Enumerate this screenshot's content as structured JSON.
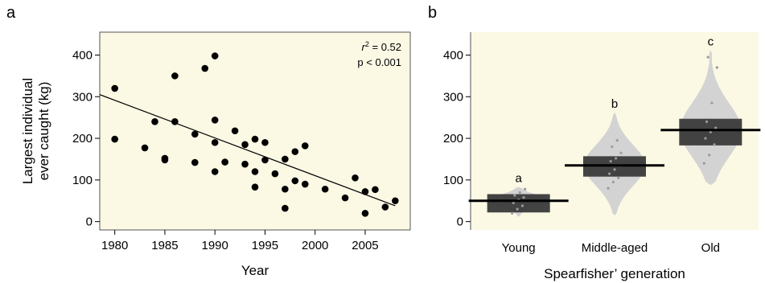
{
  "chart_data": [
    {
      "panel_label": "a",
      "type": "scatter",
      "xlabel": "Year",
      "ylabel_lines": [
        "Largest individual",
        "ever caught (kg)"
      ],
      "xlim": [
        1978.5,
        2009.5
      ],
      "ylim": [
        -20,
        455
      ],
      "xticks": [
        1980,
        1985,
        1990,
        1995,
        2000,
        2005
      ],
      "yticks": [
        0,
        100,
        200,
        300,
        400
      ],
      "background": "#fbf8e4",
      "point_color": "#000000",
      "annotation": {
        "r_symbol": "r",
        "r_exp": "2",
        "r_value": " = 0.52",
        "p_text": "p < 0.001"
      },
      "trendline": {
        "x": [
          1978.5,
          2008
        ],
        "y": [
          305,
          38
        ]
      },
      "points": [
        {
          "x": 1980,
          "y": 320
        },
        {
          "x": 1980,
          "y": 198
        },
        {
          "x": 1983,
          "y": 177
        },
        {
          "x": 1984,
          "y": 240
        },
        {
          "x": 1985,
          "y": 152
        },
        {
          "x": 1985,
          "y": 148
        },
        {
          "x": 1986,
          "y": 350
        },
        {
          "x": 1986,
          "y": 240
        },
        {
          "x": 1988,
          "y": 210
        },
        {
          "x": 1988,
          "y": 142
        },
        {
          "x": 1989,
          "y": 368
        },
        {
          "x": 1990,
          "y": 398
        },
        {
          "x": 1990,
          "y": 244
        },
        {
          "x": 1990,
          "y": 190
        },
        {
          "x": 1990,
          "y": 120
        },
        {
          "x": 1991,
          "y": 143
        },
        {
          "x": 1992,
          "y": 218
        },
        {
          "x": 1993,
          "y": 185
        },
        {
          "x": 1993,
          "y": 138
        },
        {
          "x": 1994,
          "y": 198
        },
        {
          "x": 1994,
          "y": 120
        },
        {
          "x": 1994,
          "y": 83
        },
        {
          "x": 1995,
          "y": 190
        },
        {
          "x": 1995,
          "y": 148
        },
        {
          "x": 1996,
          "y": 115
        },
        {
          "x": 1997,
          "y": 150
        },
        {
          "x": 1997,
          "y": 78
        },
        {
          "x": 1997,
          "y": 32
        },
        {
          "x": 1998,
          "y": 168
        },
        {
          "x": 1998,
          "y": 98
        },
        {
          "x": 1999,
          "y": 182
        },
        {
          "x": 1999,
          "y": 90
        },
        {
          "x": 2001,
          "y": 78
        },
        {
          "x": 2003,
          "y": 57
        },
        {
          "x": 2004,
          "y": 105
        },
        {
          "x": 2005,
          "y": 72
        },
        {
          "x": 2005,
          "y": 20
        },
        {
          "x": 2006,
          "y": 77
        },
        {
          "x": 2007,
          "y": 35
        },
        {
          "x": 2008,
          "y": 50
        }
      ]
    },
    {
      "panel_label": "b",
      "type": "pirate",
      "xlabel": "Spearfisher’ generation",
      "ylim": [
        -20,
        455
      ],
      "yticks": [
        0,
        100,
        200,
        300,
        400
      ],
      "background": "#fbf8e4",
      "violin_color": "#d3d3d3",
      "box_color": "#3a3a3a",
      "groups": [
        {
          "name": "Young",
          "letter": "a",
          "mean": 50,
          "hdi": [
            22,
            66
          ],
          "range": [
            12,
            83
          ],
          "points": [
            20,
            30,
            38,
            45,
            52,
            58,
            63,
            70,
            78
          ]
        },
        {
          "name": "Middle-aged",
          "letter": "b",
          "mean": 135,
          "hdi": [
            108,
            157
          ],
          "range": [
            15,
            262
          ],
          "points": [
            80,
            95,
            105,
            115,
            125,
            135,
            145,
            152,
            165,
            180,
            195
          ]
        },
        {
          "name": "Old",
          "letter": "c",
          "mean": 220,
          "hdi": [
            183,
            247
          ],
          "range": [
            88,
            412
          ],
          "points": [
            140,
            160,
            185,
            200,
            215,
            225,
            240,
            285,
            370,
            395
          ]
        }
      ]
    }
  ]
}
